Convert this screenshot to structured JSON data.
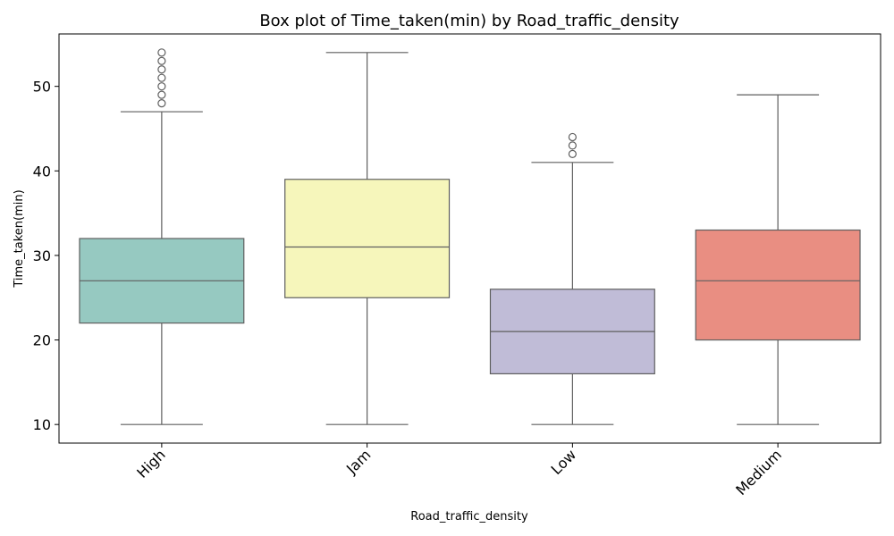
{
  "chart_data": {
    "type": "box",
    "title": "Box plot of Time_taken(min) by Road_traffic_density",
    "xlabel": "Road_traffic_density",
    "ylabel": "Time_taken(min)",
    "ylim": [
      7.8,
      56.2
    ],
    "yticks": [
      10,
      20,
      30,
      40,
      50
    ],
    "grid": false,
    "legend": "none",
    "categories": [
      "High",
      "Jam",
      "Low",
      "Medium"
    ],
    "boxes": [
      {
        "category": "High",
        "whisker_low": 10,
        "q1": 22,
        "median": 27,
        "q3": 32,
        "whisker_high": 47,
        "outliers": [
          48,
          49,
          50,
          51,
          52,
          53,
          54
        ],
        "color": "#96c9c1"
      },
      {
        "category": "Jam",
        "whisker_low": 10,
        "q1": 25,
        "median": 31,
        "q3": 39,
        "whisker_high": 54,
        "outliers": [],
        "color": "#f6f6bb"
      },
      {
        "category": "Low",
        "whisker_low": 10,
        "q1": 16,
        "median": 21,
        "q3": 26,
        "whisker_high": 41,
        "outliers": [
          42,
          43,
          44
        ],
        "color": "#c0bcd7"
      },
      {
        "category": "Medium",
        "whisker_low": 10,
        "q1": 20,
        "median": 27,
        "q3": 33,
        "whisker_high": 49,
        "outliers": [],
        "color": "#e98e82"
      }
    ]
  }
}
